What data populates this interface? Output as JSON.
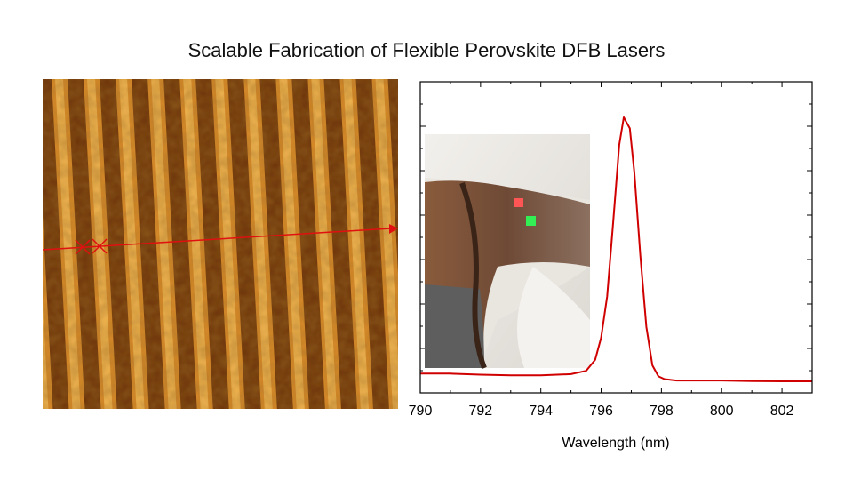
{
  "title": "Scalable Fabrication of Flexible Perovskite DFB Lasers",
  "colors": {
    "spectrum_line": "#d00000",
    "afm_dark": "#5a2a06",
    "afm_light": "#e8a33a",
    "profile_line": "#e01010"
  },
  "chart_data": {
    "type": "line",
    "xlabel": "Wavelength (nm)",
    "ylabel": "",
    "xlim": [
      790,
      803
    ],
    "ylim": [
      0,
      1
    ],
    "xticks": [
      "790",
      "792",
      "794",
      "796",
      "798",
      "800",
      "802"
    ],
    "series": [
      {
        "x": [
          790,
          791,
          792,
          793,
          794,
          795,
          795.5,
          795.8,
          796.0,
          796.2,
          796.4,
          796.6,
          796.75,
          796.85,
          796.95,
          797.1,
          797.3,
          797.5,
          797.7,
          797.9,
          798.1,
          798.5,
          799,
          800,
          801,
          802,
          803
        ],
        "y": [
          0.07,
          0.07,
          0.066,
          0.064,
          0.064,
          0.068,
          0.08,
          0.12,
          0.2,
          0.35,
          0.62,
          0.9,
          1.0,
          0.98,
          0.96,
          0.8,
          0.5,
          0.24,
          0.1,
          0.06,
          0.05,
          0.045,
          0.045,
          0.045,
          0.043,
          0.042,
          0.042
        ]
      }
    ]
  }
}
